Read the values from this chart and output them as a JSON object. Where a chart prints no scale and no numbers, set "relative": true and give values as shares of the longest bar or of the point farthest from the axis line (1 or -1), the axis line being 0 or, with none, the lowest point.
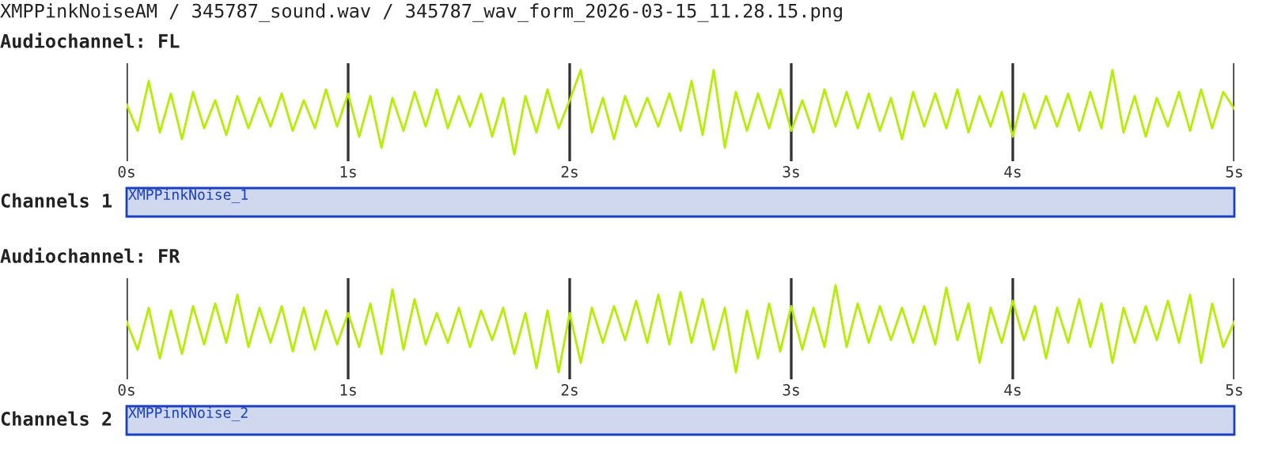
{
  "chart_data": [
    {
      "type": "line",
      "title": "XMPPinkNoiseAM / 345787_sound.wav / 345787_wav_form_2026-03-15_11.28.15.png",
      "subtitle": "Audiochannel: FL",
      "annotations": [
        "Channels 1",
        "XMPPinkNoise_1"
      ],
      "relative": true,
      "marker": "none",
      "line_style": "solid",
      "grid": "x",
      "xlim": [
        0,
        5
      ],
      "xticks": [
        {
          "value": 0,
          "label": "0s"
        },
        {
          "value": 1,
          "label": "1s"
        },
        {
          "value": 2,
          "label": "2s"
        },
        {
          "value": 3,
          "label": "3s"
        },
        {
          "value": 4,
          "label": "4s"
        },
        {
          "value": 5,
          "label": "5s"
        }
      ],
      "x": [
        0,
        0.05,
        0.1,
        0.15,
        0.2,
        0.25,
        0.3,
        0.35,
        0.4,
        0.45,
        0.5,
        0.55,
        0.6,
        0.65,
        0.7,
        0.75,
        0.8,
        0.85,
        0.9,
        0.95,
        1,
        1.05,
        1.1,
        1.15,
        1.2,
        1.25,
        1.3,
        1.35,
        1.4,
        1.45,
        1.5,
        1.55,
        1.6,
        1.65,
        1.7,
        1.75,
        1.8,
        1.85,
        1.9,
        1.95,
        2,
        2.05,
        2.1,
        2.15,
        2.2,
        2.25,
        2.3,
        2.35,
        2.4,
        2.45,
        2.5,
        2.55,
        2.6,
        2.65,
        2.7,
        2.75,
        2.8,
        2.85,
        2.9,
        2.95,
        3,
        3.05,
        3.1,
        3.15,
        3.2,
        3.25,
        3.3,
        3.35,
        3.4,
        3.45,
        3.5,
        3.55,
        3.6,
        3.65,
        3.7,
        3.75,
        3.8,
        3.85,
        3.9,
        3.95,
        4,
        4.05,
        4.1,
        4.15,
        4.2,
        4.25,
        4.3,
        4.35,
        4.4,
        4.45,
        4.5,
        4.55,
        4.6,
        4.65,
        4.7,
        4.75,
        4.8,
        4.85,
        4.9,
        4.95,
        5
      ],
      "series": [
        {
          "color": "#b4ee00",
          "values": [
            0.59,
            0.28,
            0.87,
            0.26,
            0.72,
            0.18,
            0.74,
            0.31,
            0.64,
            0.23,
            0.69,
            0.31,
            0.67,
            0.33,
            0.72,
            0.28,
            0.64,
            0.31,
            0.77,
            0.33,
            0.72,
            0.21,
            0.69,
            0.08,
            0.67,
            0.28,
            0.74,
            0.33,
            0.77,
            0.31,
            0.69,
            0.33,
            0.72,
            0.21,
            0.67,
            0,
            0.69,
            0.26,
            0.77,
            0.31,
            0.64,
            1,
            0.26,
            0.67,
            0.18,
            0.69,
            0.33,
            0.67,
            0.33,
            0.72,
            0.28,
            0.87,
            0.23,
            1,
            0.08,
            0.74,
            0.28,
            0.72,
            0.31,
            0.77,
            0.28,
            0.64,
            0.26,
            0.77,
            0.33,
            0.74,
            0.31,
            0.72,
            0.28,
            0.67,
            0.18,
            0.74,
            0.33,
            0.72,
            0.31,
            0.77,
            0.26,
            0.69,
            0.33,
            0.74,
            0.21,
            0.72,
            0.31,
            0.69,
            0.33,
            0.72,
            0.28,
            0.74,
            0.31,
            1,
            0.26,
            0.69,
            0.21,
            0.67,
            0.33,
            0.74,
            0.28,
            0.77,
            0.31,
            0.74,
            0.54
          ]
        }
      ]
    },
    {
      "type": "line",
      "subtitle": "Audiochannel: FR",
      "annotations": [
        "Channels 2",
        "XMPPinkNoise_2"
      ],
      "relative": true,
      "marker": "none",
      "line_style": "solid",
      "grid": "x",
      "xlim": [
        0,
        5
      ],
      "xticks": [
        {
          "value": 0,
          "label": "0s"
        },
        {
          "value": 1,
          "label": "1s"
        },
        {
          "value": 2,
          "label": "2s"
        },
        {
          "value": 3,
          "label": "3s"
        },
        {
          "value": 4,
          "label": "4s"
        },
        {
          "value": 5,
          "label": "5s"
        }
      ],
      "x": [
        0,
        0.05,
        0.1,
        0.15,
        0.2,
        0.25,
        0.3,
        0.35,
        0.4,
        0.45,
        0.5,
        0.55,
        0.6,
        0.65,
        0.7,
        0.75,
        0.8,
        0.85,
        0.9,
        0.95,
        1,
        1.05,
        1.1,
        1.15,
        1.2,
        1.25,
        1.3,
        1.35,
        1.4,
        1.45,
        1.5,
        1.55,
        1.6,
        1.65,
        1.7,
        1.75,
        1.8,
        1.85,
        1.9,
        1.95,
        2,
        2.05,
        2.1,
        2.15,
        2.2,
        2.25,
        2.3,
        2.35,
        2.4,
        2.45,
        2.5,
        2.55,
        2.6,
        2.65,
        2.7,
        2.75,
        2.8,
        2.85,
        2.9,
        2.95,
        3,
        3.05,
        3.1,
        3.15,
        3.2,
        3.25,
        3.3,
        3.35,
        3.4,
        3.45,
        3.5,
        3.55,
        3.6,
        3.65,
        3.7,
        3.75,
        3.8,
        3.85,
        3.9,
        3.95,
        4,
        4.05,
        4.1,
        4.15,
        4.2,
        4.25,
        4.3,
        4.35,
        4.4,
        4.45,
        4.5,
        4.55,
        4.6,
        4.65,
        4.7,
        4.75,
        4.8,
        4.85,
        4.9,
        4.95,
        5
      ],
      "series": [
        {
          "color": "#b4ee00",
          "values": [
            0.58,
            0.26,
            0.74,
            0.16,
            0.71,
            0.21,
            0.76,
            0.32,
            0.79,
            0.34,
            0.89,
            0.29,
            0.74,
            0.34,
            0.76,
            0.24,
            0.74,
            0.26,
            0.71,
            0.32,
            0.68,
            0.29,
            0.79,
            0.21,
            0.95,
            0.26,
            0.84,
            0.32,
            0.68,
            0.34,
            0.74,
            0.29,
            0.71,
            0.37,
            0.74,
            0.21,
            0.68,
            0.05,
            0.71,
            0,
            0.68,
            0.11,
            0.74,
            0.34,
            0.76,
            0.37,
            0.82,
            0.34,
            0.89,
            0.32,
            0.92,
            0.34,
            0.84,
            0.26,
            0.74,
            0,
            0.71,
            0.16,
            0.79,
            0.24,
            0.76,
            0.26,
            0.74,
            0.29,
            1,
            0.29,
            0.79,
            0.34,
            0.76,
            0.37,
            0.74,
            0.34,
            0.76,
            0.32,
            0.97,
            0.37,
            0.79,
            0.11,
            0.74,
            0.34,
            0.82,
            0.37,
            0.76,
            0.16,
            0.74,
            0.34,
            0.84,
            0.29,
            0.79,
            0.11,
            0.74,
            0.34,
            0.76,
            0.37,
            0.82,
            0.34,
            0.89,
            0.11,
            0.79,
            0.29,
            0.58
          ]
        }
      ]
    }
  ]
}
